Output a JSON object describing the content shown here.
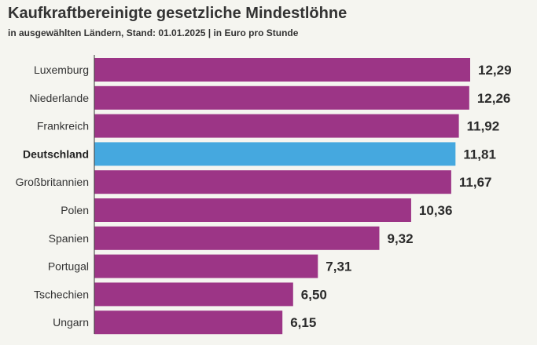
{
  "title": "Kaufkraftbereinigte gesetzliche Mindestlöhne",
  "subtitle": "in ausgewählten Ländern, Stand: 01.01.2025 | in Euro pro Stunde",
  "colors": {
    "bar": "#9c3586",
    "highlight": "#45a8df",
    "axis": "#333333"
  },
  "chart_data": {
    "type": "bar",
    "orientation": "horizontal",
    "title": "Kaufkraftbereinigte gesetzliche Mindestlöhne",
    "subtitle": "in ausgewählten Ländern, Stand: 01.01.2025 | in Euro pro Stunde",
    "xlabel": "",
    "ylabel": "",
    "grid": false,
    "highlight_category": "Deutschland",
    "xlim": [
      0,
      12.29
    ],
    "categories": [
      "Luxemburg",
      "Niederlande",
      "Frankreich",
      "Deutschland",
      "Großbritannien",
      "Polen",
      "Spanien",
      "Portugal",
      "Tschechien",
      "Ungarn"
    ],
    "values": [
      12.29,
      12.26,
      11.92,
      11.81,
      11.67,
      10.36,
      9.32,
      7.31,
      6.5,
      6.15
    ],
    "value_labels": [
      "12,29",
      "12,26",
      "11,92",
      "11,81",
      "11,67",
      "10,36",
      "9,32",
      "7,31",
      "6,50",
      "6,15"
    ]
  }
}
